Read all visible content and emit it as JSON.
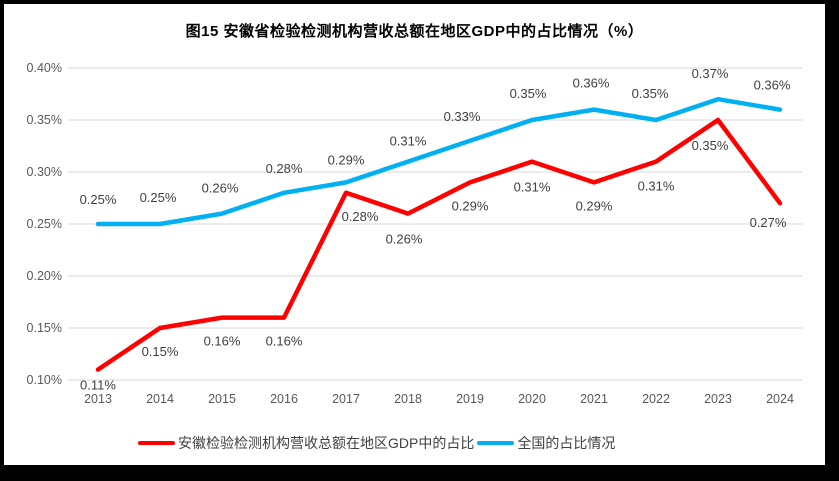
{
  "window": {
    "frame_color": "#000000",
    "background_color": "#FFFFFF"
  },
  "title": "图15 安徽省检验检测机构营收总额在地区GDP中的占比情况（%）",
  "legend": {
    "items": [
      {
        "label": "安徽检验检测机构营收总额在地区GDP中的占比",
        "color": "#FF0000"
      },
      {
        "label": "全国的占比情况",
        "color": "#00B0F0"
      }
    ]
  },
  "colors": {
    "anhui_line": "#FF0000",
    "national_line": "#00B0F0",
    "gridline": "#D9D9D9",
    "axis_text": "#595959",
    "data_label_text": "#404040",
    "title_text": "#000000"
  },
  "chart_data": {
    "type": "line",
    "title": "图15 安徽省检验检测机构营收总额在地区GDP中的占比情况（%）",
    "xlabel": "",
    "ylabel": "",
    "categories": [
      "2013",
      "2014",
      "2015",
      "2016",
      "2017",
      "2018",
      "2019",
      "2020",
      "2021",
      "2022",
      "2023",
      "2024"
    ],
    "y_ticks": [
      "0.40%",
      "0.35%",
      "0.30%",
      "0.25%",
      "0.20%",
      "0.15%",
      "0.10%"
    ],
    "ylim": [
      0.1,
      0.4
    ],
    "y_step": 0.05,
    "unit": "percent",
    "grid": "horizontal",
    "legend_position": "bottom",
    "series": [
      {
        "name": "安徽检验检测机构营收总额在地区GDP中的占比",
        "color": "#FF0000",
        "values": [
          0.11,
          0.15,
          0.16,
          0.16,
          0.28,
          0.26,
          0.29,
          0.31,
          0.29,
          0.31,
          0.35,
          0.27
        ],
        "labels": [
          "0.11%",
          "0.15%",
          "0.16%",
          "0.16%",
          "0.28%",
          "0.26%",
          "0.29%",
          "0.31%",
          "0.29%",
          "0.31%",
          "0.35%",
          "0.27%"
        ],
        "label_position": "below",
        "label_offsets": [
          [
            0,
            16
          ],
          [
            0,
            24
          ],
          [
            0,
            24
          ],
          [
            0,
            24
          ],
          [
            14,
            24
          ],
          [
            -4,
            26
          ],
          [
            0,
            24
          ],
          [
            0,
            26
          ],
          [
            0,
            24
          ],
          [
            0,
            25
          ],
          [
            -8,
            26
          ],
          [
            -12,
            20
          ]
        ]
      },
      {
        "name": "全国的占比情况",
        "color": "#00B0F0",
        "values": [
          0.25,
          0.25,
          0.26,
          0.28,
          0.29,
          0.31,
          0.33,
          0.35,
          0.36,
          0.35,
          0.37,
          0.36
        ],
        "labels": [
          "0.25%",
          "0.25%",
          "0.26%",
          "0.28%",
          "0.29%",
          "0.31%",
          "0.33%",
          "0.35%",
          "0.36%",
          "0.35%",
          "0.37%",
          "0.36%"
        ],
        "label_position": "above",
        "label_offsets": [
          [
            0,
            -24
          ],
          [
            -2,
            -26
          ],
          [
            -2,
            -25
          ],
          [
            0,
            -24
          ],
          [
            0,
            -22
          ],
          [
            0,
            -20
          ],
          [
            -8,
            -24
          ],
          [
            -4,
            -26
          ],
          [
            -3,
            -26
          ],
          [
            -6,
            -26
          ],
          [
            -8,
            -25
          ],
          [
            -8,
            -24
          ]
        ]
      }
    ]
  }
}
